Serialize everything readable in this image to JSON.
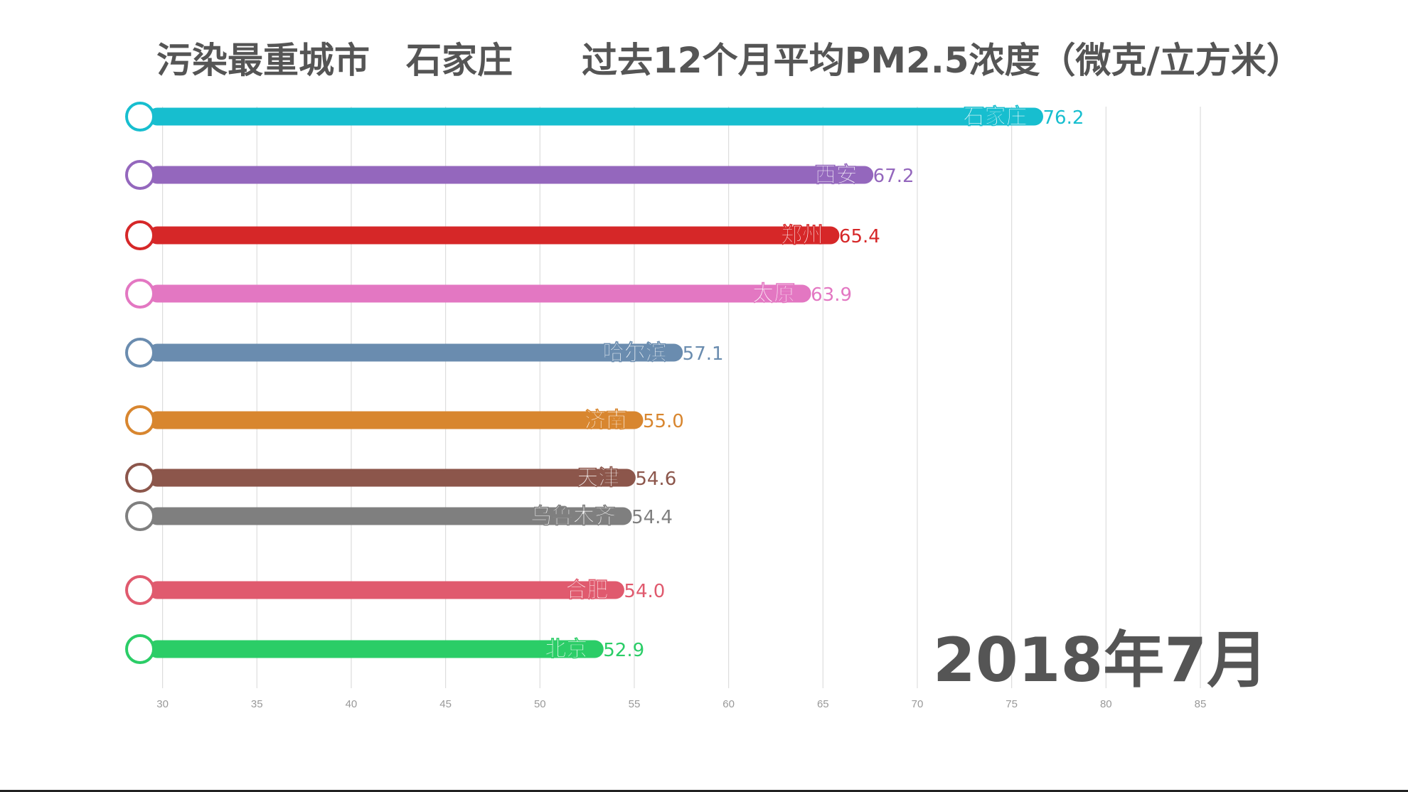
{
  "header": {
    "label": "污染最重城市",
    "top_city": "石家庄",
    "metric": "过去12个月平均PM2.5浓度（微克/立方米）"
  },
  "date_label": "2018年7月",
  "chart_data": {
    "type": "bar",
    "orientation": "horizontal",
    "categories": [
      "石家庄",
      "西安",
      "郑州",
      "太原",
      "哈尔滨",
      "济南",
      "天津",
      "乌鲁木齐",
      "合肥",
      "北京"
    ],
    "values": [
      76.2,
      67.2,
      65.4,
      63.9,
      57.1,
      55.0,
      54.6,
      54.4,
      54.0,
      52.9
    ],
    "value_labels": [
      "76.2",
      "67.2",
      "65.4",
      "63.9",
      "57.1",
      "55.0",
      "54.6",
      "54.4",
      "54.0",
      "52.9"
    ],
    "colors": [
      "#17becf",
      "#9467bd",
      "#d62728",
      "#e377c2",
      "#6a8caf",
      "#d8862f",
      "#8c564b",
      "#7f7f7f",
      "#e05a6e",
      "#2bcd67"
    ],
    "xlim": [
      30,
      85
    ],
    "xticks": [
      30,
      35,
      40,
      45,
      50,
      55,
      60,
      65,
      70,
      75,
      80,
      85
    ],
    "grid": true
  }
}
